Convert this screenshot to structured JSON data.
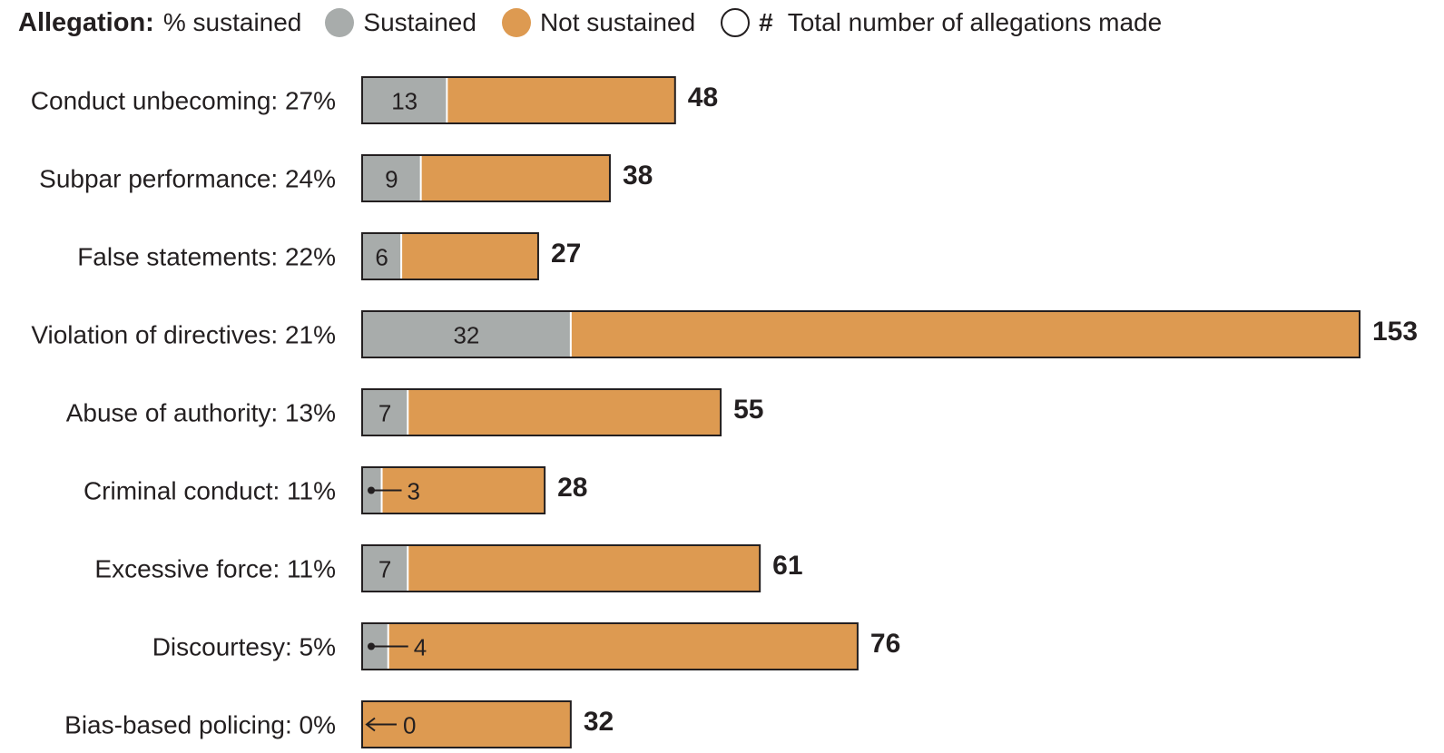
{
  "legend": {
    "title_bold": "Allegation:",
    "title_rest": "% sustained",
    "sustained": "Sustained",
    "not_sustained": "Not sustained",
    "total_symbol": "#",
    "total": "Total number of allegations made"
  },
  "colors": {
    "sustained": "#a8acab",
    "not_sustained": "#dd9a51",
    "outline": "#231f20",
    "text": "#231f20"
  },
  "chart_data": {
    "type": "bar",
    "orientation": "horizontal",
    "stacked": true,
    "xlim": [
      0,
      153
    ],
    "grid": false,
    "legend_position": "top",
    "categories": [
      "Conduct unbecoming: 27%",
      "Subpar performance: 24%",
      "False statements: 22%",
      "Violation of directives: 21%",
      "Abuse of authority: 13%",
      "Criminal conduct: 11%",
      "Excessive force: 11%",
      "Discourtesy: 5%",
      "Bias-based policing: 0%"
    ],
    "series": [
      {
        "name": "Sustained",
        "values": [
          13,
          9,
          6,
          32,
          7,
          3,
          7,
          4,
          0
        ]
      },
      {
        "name": "Not sustained",
        "values": [
          35,
          29,
          21,
          121,
          48,
          25,
          54,
          72,
          32
        ]
      }
    ],
    "totals": [
      48,
      38,
      27,
      153,
      55,
      28,
      61,
      76,
      32
    ],
    "sustained_labels": [
      "13",
      "9",
      "6",
      "32",
      "7",
      "3",
      "7",
      "4",
      "0"
    ],
    "total_labels": [
      "48",
      "38",
      "27",
      "153",
      "55",
      "28",
      "61",
      "76",
      "32"
    ]
  }
}
